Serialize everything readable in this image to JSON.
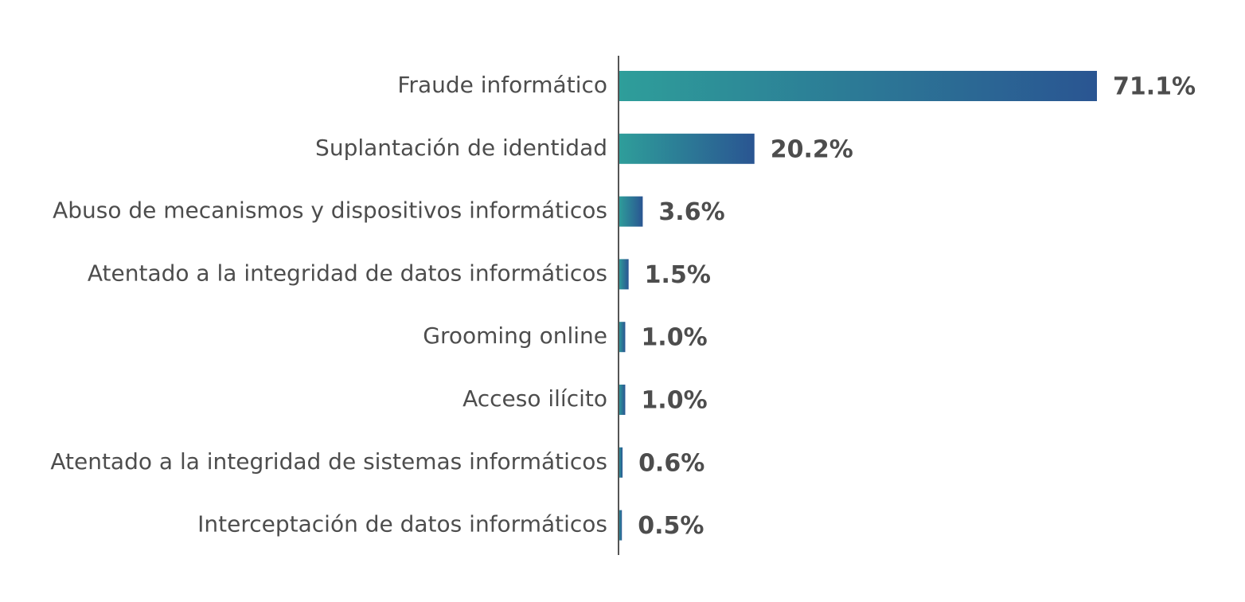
{
  "chart_data": {
    "type": "bar",
    "orientation": "horizontal",
    "categories": [
      "Fraude informático",
      "Suplantación de identidad",
      "Abuso de mecanismos y dispositivos informáticos",
      "Atentado a la integridad de datos informáticos",
      "Grooming online",
      "Acceso ilícito",
      "Atentado a la integridad de sistemas informáticos",
      "Interceptación de datos informáticos"
    ],
    "values": [
      71.1,
      20.2,
      3.6,
      1.5,
      1.0,
      1.0,
      0.6,
      0.5
    ],
    "value_labels": [
      "71.1%",
      "20.2%",
      "3.6%",
      "1.5%",
      "1.0%",
      "1.0%",
      "0.6%",
      "0.5%"
    ],
    "unit": "%",
    "title": "",
    "xlabel": "",
    "ylabel": "",
    "xlim": [
      0,
      71.1
    ],
    "grid": false,
    "legend": "none",
    "colors": {
      "gradient_start": "#2e9e9a",
      "gradient_end": "#2a5592",
      "axis": "#555555",
      "text": "#4d4d4d"
    }
  }
}
